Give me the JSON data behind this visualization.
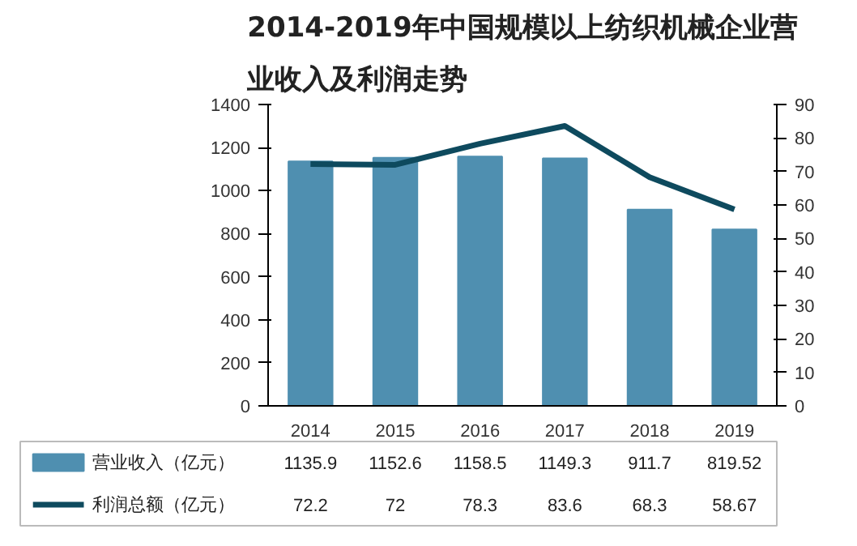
{
  "chart_data": {
    "type": "bar",
    "title": "2014-2019年中国规模以上纺织机械企业营业收入及利润走势",
    "categories": [
      "2014",
      "2015",
      "2016",
      "2017",
      "2018",
      "2019"
    ],
    "series": [
      {
        "name": "营业收入（亿元）",
        "color": "#4f8fb0",
        "values": [
          1135.9,
          1152.6,
          1158.5,
          1149.3,
          911.7,
          819.52
        ]
      },
      {
        "name": "利润总额（亿元）",
        "color": "#0e4a5e",
        "type": "line",
        "axis": "y2",
        "values": [
          72.2,
          72,
          78.3,
          83.6,
          68.3,
          58.67
        ]
      }
    ],
    "ylim": [
      0,
      1400
    ],
    "yticks": [
      0,
      200,
      400,
      600,
      800,
      1000,
      1200,
      1400
    ],
    "y2lim": [
      0,
      90
    ],
    "y2ticks": [
      0,
      10,
      20,
      30,
      40,
      50,
      60,
      70,
      80,
      90
    ],
    "data_labels": true,
    "legend": "bottom",
    "grid": false
  }
}
